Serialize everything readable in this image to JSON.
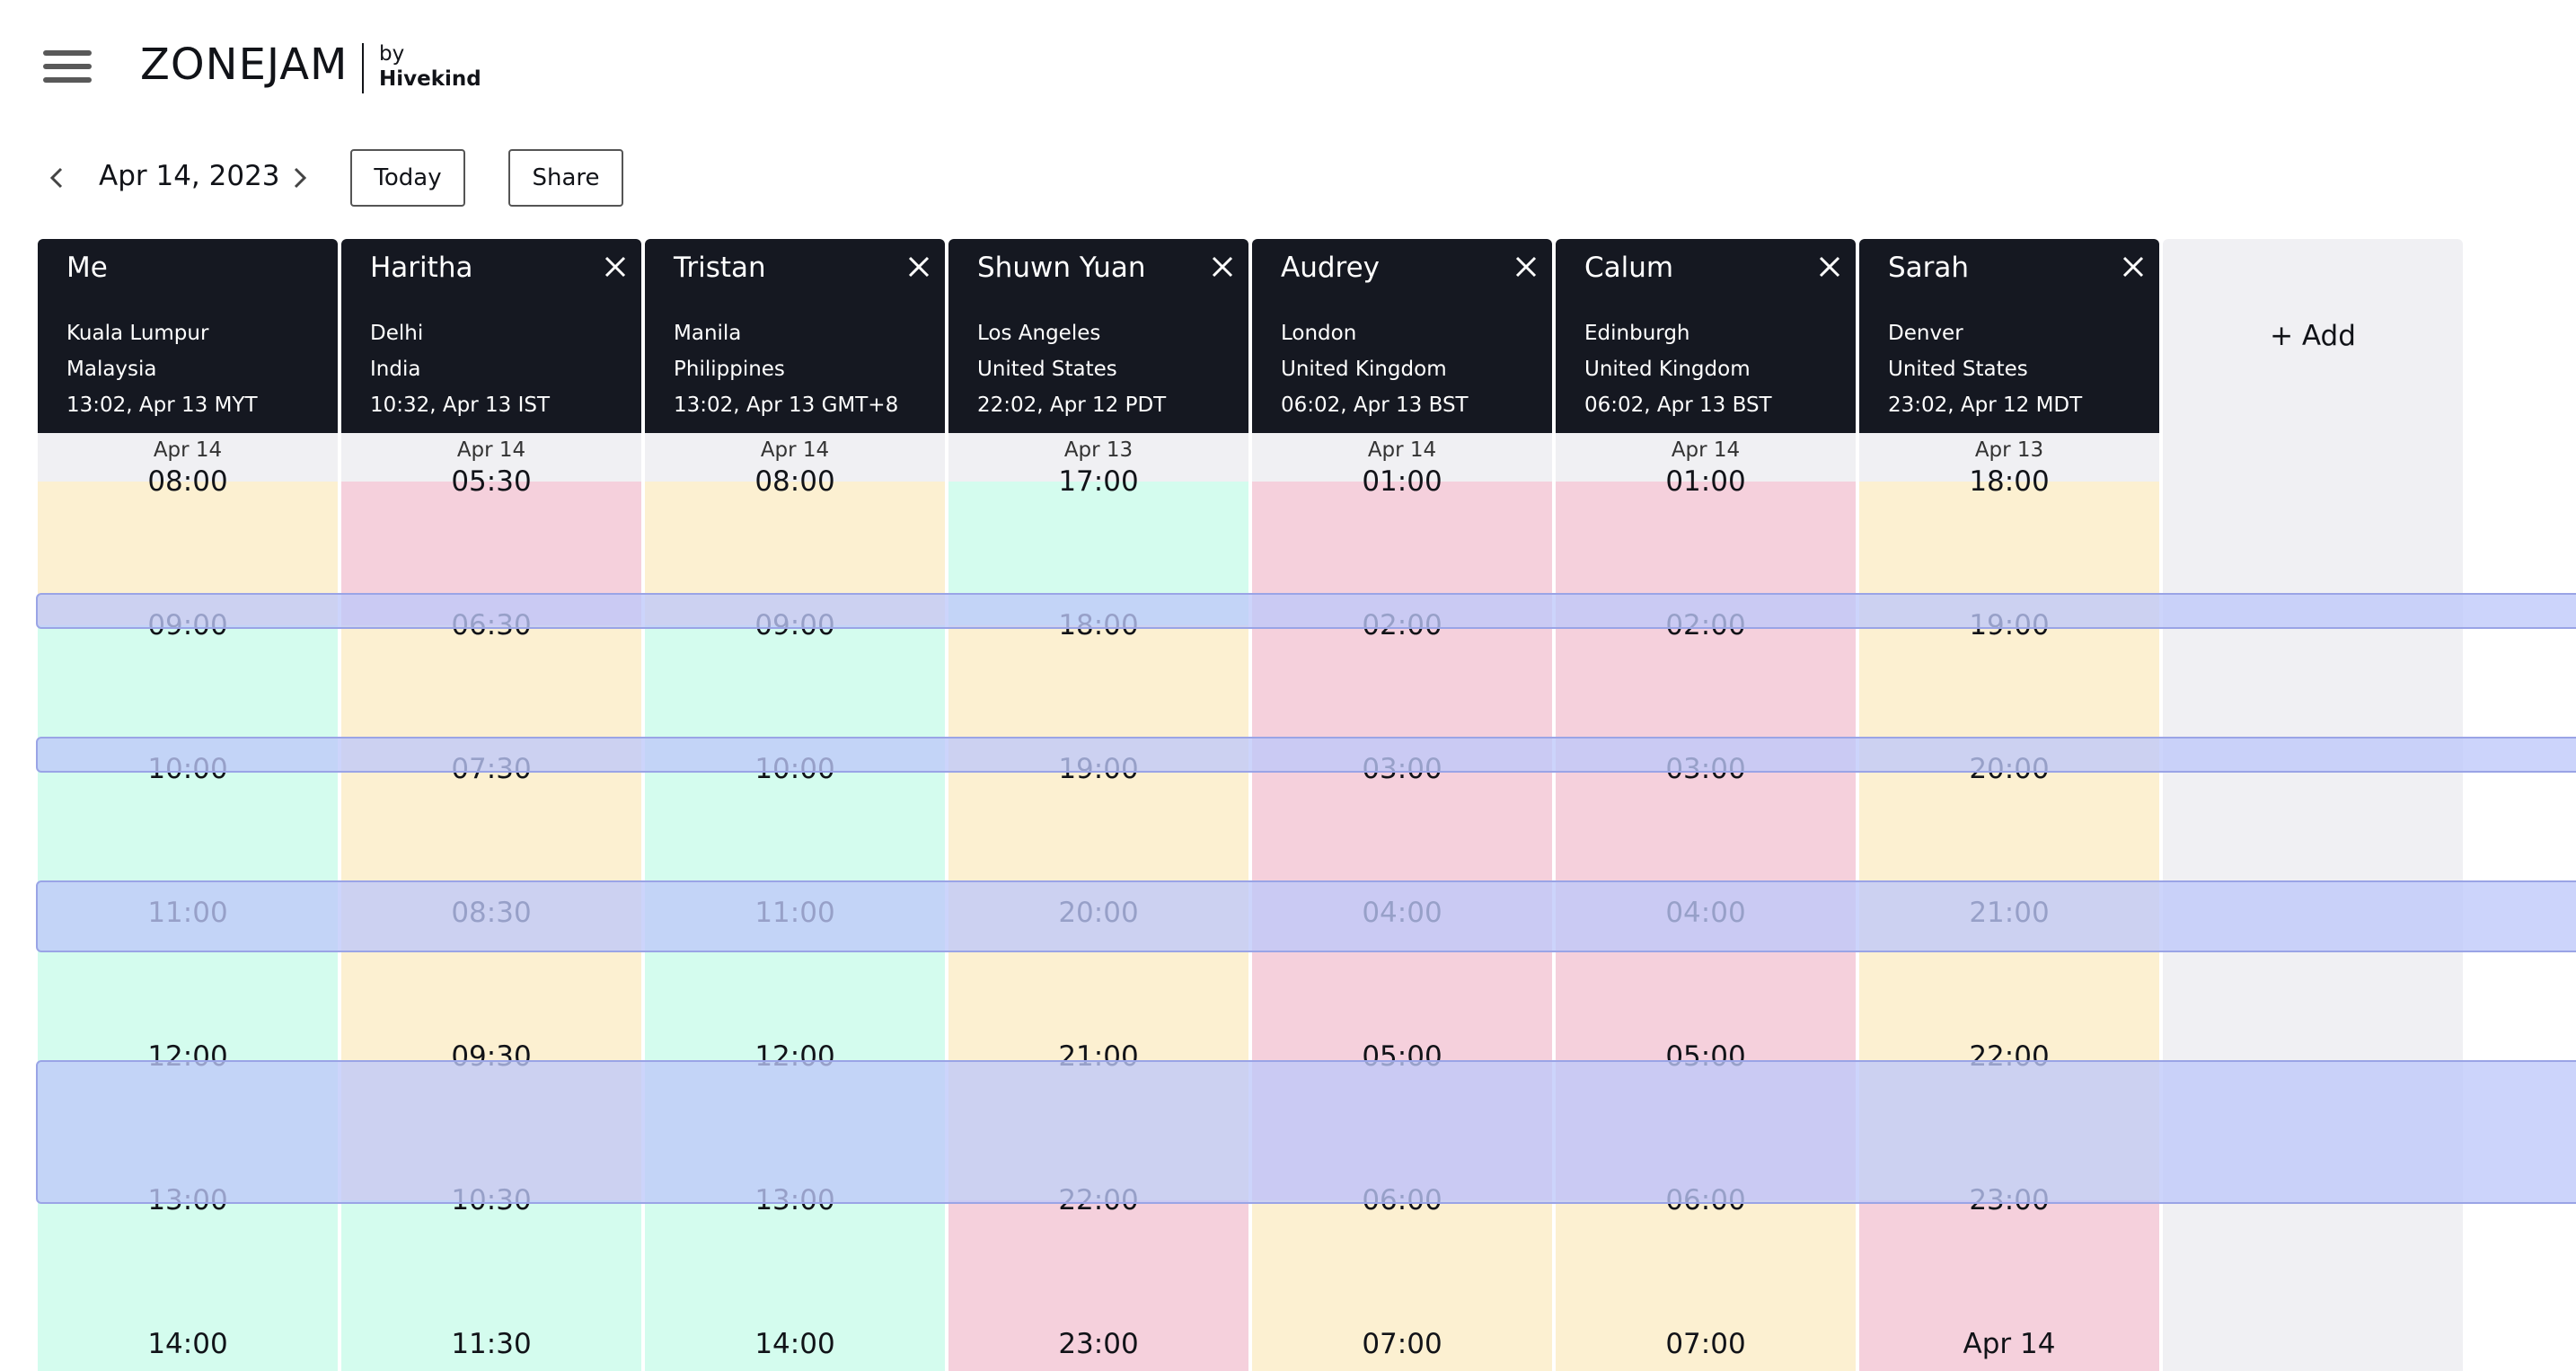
{
  "header": {
    "logo": "ZONEJAM",
    "by": "by",
    "brand": "Hivekind"
  },
  "nav": {
    "date": "Apr 14, 2023",
    "today_label": "Today",
    "share_label": "Share"
  },
  "add_label": "+ Add",
  "colors": {
    "yellow": "#fcf0d1",
    "pink": "#f5d0dc",
    "green": "#d4fcee",
    "header": "#151821",
    "selection": "#cdd6fa"
  },
  "people": [
    {
      "name": "Me",
      "city": "Kuala Lumpur",
      "country": "Malaysia",
      "time": "13:02, Apr 13 MYT",
      "removable": false,
      "date": "Apr 14",
      "slots": [
        "08:00",
        "09:00",
        "10:00",
        "11:00",
        "12:00",
        "13:00",
        "14:00"
      ],
      "colors": [
        "yellow",
        "green",
        "green",
        "green",
        "green",
        "green",
        "green"
      ]
    },
    {
      "name": "Haritha",
      "city": "Delhi",
      "country": "India",
      "time": "10:32, Apr 13 IST",
      "removable": true,
      "date": "Apr 14",
      "slots": [
        "05:30",
        "06:30",
        "07:30",
        "08:30",
        "09:30",
        "10:30",
        "11:30"
      ],
      "colors": [
        "pink",
        "yellow",
        "yellow",
        "yellow",
        "yellow",
        "green",
        "green"
      ]
    },
    {
      "name": "Tristan",
      "city": "Manila",
      "country": "Philippines",
      "time": "13:02, Apr 13 GMT+8",
      "removable": true,
      "date": "Apr 14",
      "slots": [
        "08:00",
        "09:00",
        "10:00",
        "11:00",
        "12:00",
        "13:00",
        "14:00"
      ],
      "colors": [
        "yellow",
        "green",
        "green",
        "green",
        "green",
        "green",
        "green"
      ]
    },
    {
      "name": "Shuwn Yuan",
      "city": "Los Angeles",
      "country": "United States",
      "time": "22:02, Apr 12 PDT",
      "removable": true,
      "date": "Apr 13",
      "slots": [
        "17:00",
        "18:00",
        "19:00",
        "20:00",
        "21:00",
        "22:00",
        "23:00"
      ],
      "colors": [
        "green",
        "yellow",
        "yellow",
        "yellow",
        "yellow",
        "pink",
        "pink"
      ]
    },
    {
      "name": "Audrey",
      "city": "London",
      "country": "United Kingdom",
      "time": "06:02, Apr 13 BST",
      "removable": true,
      "date": "Apr 14",
      "slots": [
        "01:00",
        "02:00",
        "03:00",
        "04:00",
        "05:00",
        "06:00",
        "07:00"
      ],
      "colors": [
        "pink",
        "pink",
        "pink",
        "pink",
        "pink",
        "yellow",
        "yellow"
      ]
    },
    {
      "name": "Calum",
      "city": "Edinburgh",
      "country": "United Kingdom",
      "time": "06:02, Apr 13 BST",
      "removable": true,
      "date": "Apr 14",
      "slots": [
        "01:00",
        "02:00",
        "03:00",
        "04:00",
        "05:00",
        "06:00",
        "07:00"
      ],
      "colors": [
        "pink",
        "pink",
        "pink",
        "pink",
        "pink",
        "yellow",
        "yellow"
      ]
    },
    {
      "name": "Sarah",
      "city": "Denver",
      "country": "United States",
      "time": "23:02, Apr 12 MDT",
      "removable": true,
      "date": "Apr 13",
      "slots": [
        "18:00",
        "19:00",
        "20:00",
        "21:00",
        "22:00",
        "23:00",
        "Apr 14"
      ],
      "colors": [
        "yellow",
        "yellow",
        "yellow",
        "yellow",
        "yellow",
        "pink",
        "pink"
      ]
    }
  ]
}
